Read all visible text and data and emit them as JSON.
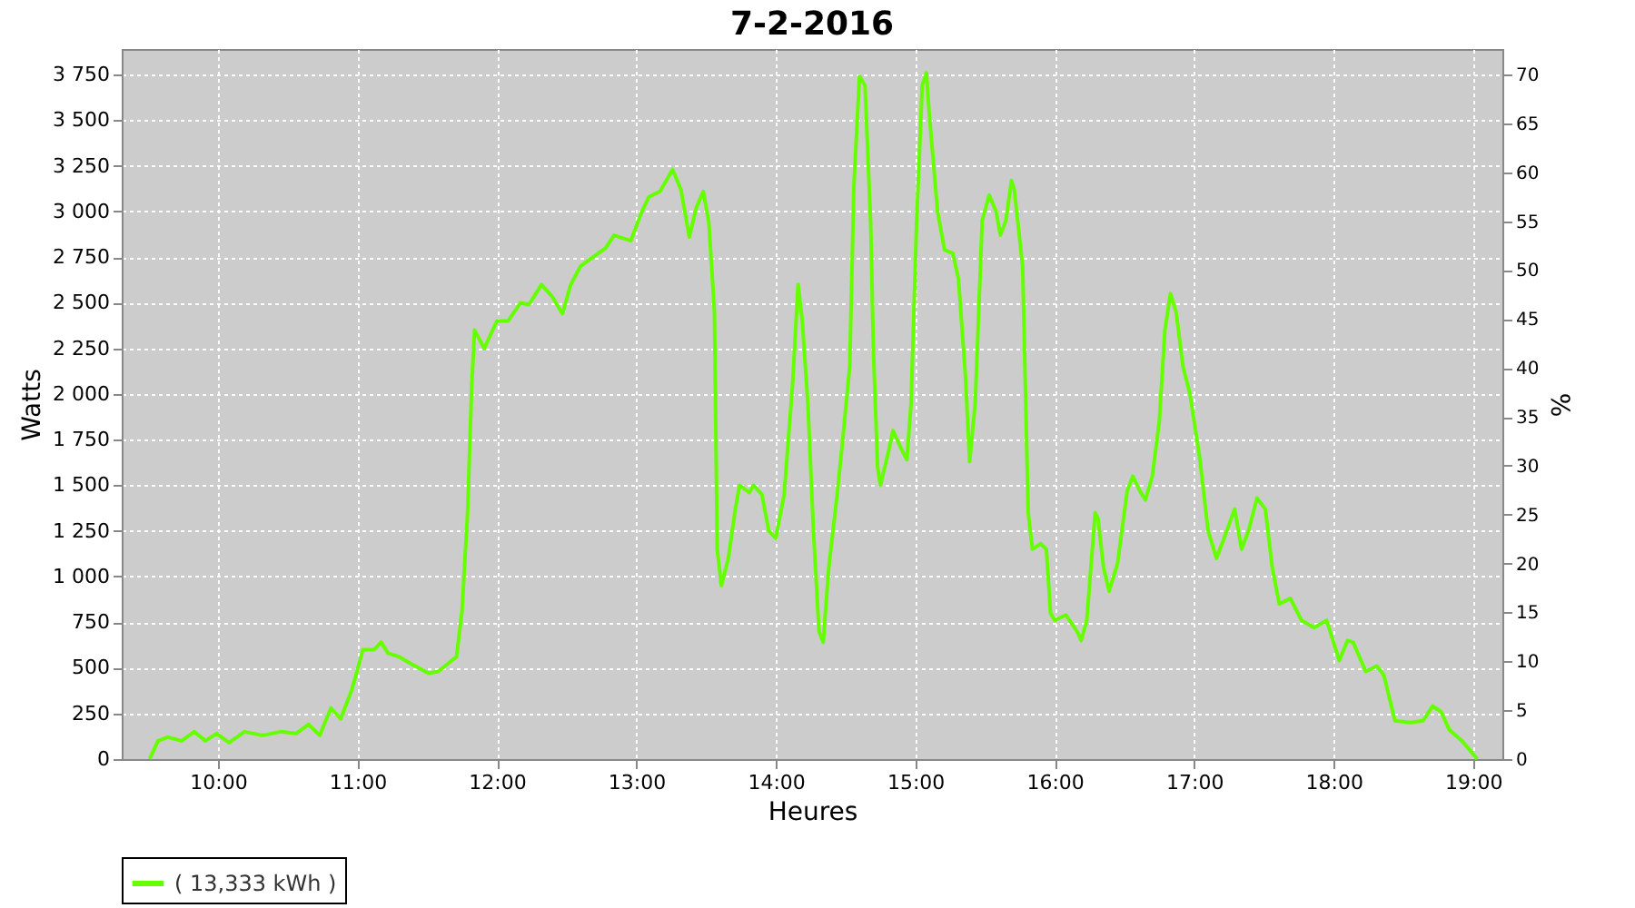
{
  "chart_data": {
    "type": "line",
    "title": "7-2-2016",
    "xlabel": "Heures",
    "ylabel": "Watts",
    "y2label": "%",
    "xlim": [
      9.31,
      19.21
    ],
    "xticks": [
      {
        "value": 10,
        "label": "10:00"
      },
      {
        "value": 11,
        "label": "11:00"
      },
      {
        "value": 12,
        "label": "12:00"
      },
      {
        "value": 13,
        "label": "13:00"
      },
      {
        "value": 14,
        "label": "14:00"
      },
      {
        "value": 15,
        "label": "15:00"
      },
      {
        "value": 16,
        "label": "16:00"
      },
      {
        "value": 17,
        "label": "17:00"
      },
      {
        "value": 18,
        "label": "18:00"
      },
      {
        "value": 19,
        "label": "19:00"
      }
    ],
    "ylim": [
      0,
      3890
    ],
    "yticks": [
      0,
      250,
      500,
      750,
      {
        "value": 1000,
        "label": "1 000"
      },
      {
        "value": 1250,
        "label": "1 250"
      },
      {
        "value": 1500,
        "label": "1 500"
      },
      {
        "value": 1750,
        "label": "1 750"
      },
      {
        "value": 2000,
        "label": "2 000"
      },
      {
        "value": 2250,
        "label": "2 250"
      },
      {
        "value": 2500,
        "label": "2 500"
      },
      {
        "value": 2750,
        "label": "2 750"
      },
      {
        "value": 3000,
        "label": "3 000"
      },
      {
        "value": 3250,
        "label": "3 250"
      },
      {
        "value": 3500,
        "label": "3 500"
      },
      {
        "value": 3750,
        "label": "3 750"
      }
    ],
    "y2lim": [
      0,
      72.6
    ],
    "y2ticks": [
      0,
      5,
      10,
      15,
      20,
      25,
      30,
      35,
      40,
      45,
      50,
      55,
      60,
      65,
      70
    ],
    "grid": true,
    "legend": "bottom",
    "marker": "none",
    "line_style": "solid",
    "series": [
      {
        "name": "( 13,333 kWh )",
        "color": "#66ff00",
        "x": [
          9.51,
          9.57,
          9.64,
          9.74,
          9.83,
          9.91,
          9.99,
          10.08,
          10.19,
          10.32,
          10.45,
          10.56,
          10.65,
          10.73,
          10.81,
          10.88,
          10.96,
          11.04,
          11.12,
          11.17,
          11.22,
          11.3,
          11.39,
          11.51,
          11.58,
          11.66,
          11.71,
          11.75,
          11.79,
          11.82,
          11.84,
          11.91,
          12.0,
          12.08,
          12.17,
          12.23,
          12.32,
          12.4,
          12.47,
          12.53,
          12.6,
          12.69,
          12.78,
          12.84,
          12.96,
          13.04,
          13.09,
          13.17,
          13.26,
          13.32,
          13.38,
          13.43,
          13.48,
          13.52,
          13.56,
          13.58,
          13.61,
          13.66,
          13.71,
          13.74,
          13.81,
          13.84,
          13.9,
          13.95,
          14.0,
          14.06,
          14.12,
          14.16,
          14.19,
          14.23,
          14.27,
          14.31,
          14.34,
          14.38,
          14.44,
          14.48,
          14.53,
          14.56,
          14.6,
          14.64,
          14.68,
          14.7,
          14.73,
          14.75,
          14.81,
          14.84,
          14.9,
          14.94,
          14.97,
          15.01,
          15.05,
          15.08,
          15.1,
          15.16,
          15.21,
          15.27,
          15.31,
          15.36,
          15.39,
          15.43,
          15.48,
          15.53,
          15.58,
          15.61,
          15.65,
          15.69,
          15.71,
          15.77,
          15.81,
          15.84,
          15.9,
          15.94,
          15.97,
          16.0,
          16.08,
          16.16,
          16.19,
          16.23,
          16.29,
          16.31,
          16.35,
          16.39,
          16.45,
          16.52,
          16.56,
          16.61,
          16.65,
          16.7,
          16.75,
          16.79,
          16.83,
          16.87,
          16.92,
          16.97,
          17.04,
          17.1,
          17.16,
          17.21,
          17.29,
          17.34,
          17.39,
          17.45,
          17.51,
          17.56,
          17.61,
          17.69,
          17.77,
          17.86,
          17.95,
          18.04,
          18.1,
          18.14,
          18.23,
          18.31,
          18.36,
          18.44,
          18.55,
          18.64,
          18.71,
          18.77,
          18.83,
          18.92,
          19.03
        ],
        "values": [
          0,
          100,
          120,
          100,
          150,
          100,
          140,
          90,
          150,
          130,
          150,
          140,
          190,
          130,
          280,
          220,
          380,
          600,
          600,
          640,
          580,
          560,
          520,
          470,
          480,
          530,
          560,
          810,
          1350,
          2050,
          2350,
          2250,
          2400,
          2400,
          2500,
          2490,
          2600,
          2530,
          2440,
          2600,
          2700,
          2750,
          2800,
          2870,
          2840,
          3000,
          3080,
          3110,
          3230,
          3120,
          2860,
          3020,
          3110,
          2940,
          2450,
          1150,
          950,
          1100,
          1370,
          1500,
          1460,
          1500,
          1450,
          1250,
          1210,
          1450,
          2050,
          2600,
          2400,
          1950,
          1250,
          700,
          640,
          1050,
          1450,
          1750,
          2150,
          3140,
          3740,
          3690,
          2940,
          2240,
          1600,
          1500,
          1690,
          1800,
          1700,
          1640,
          1950,
          2950,
          3690,
          3760,
          3540,
          3000,
          2790,
          2770,
          2630,
          2100,
          1630,
          1950,
          2950,
          3090,
          3000,
          2870,
          2950,
          3170,
          3120,
          2700,
          1350,
          1150,
          1180,
          1150,
          800,
          760,
          790,
          700,
          650,
          760,
          1350,
          1320,
          1050,
          920,
          1070,
          1470,
          1550,
          1470,
          1420,
          1550,
          1850,
          2350,
          2550,
          2450,
          2150,
          2000,
          1650,
          1250,
          1100,
          1200,
          1370,
          1150,
          1250,
          1430,
          1370,
          1050,
          850,
          880,
          760,
          720,
          760,
          540,
          650,
          640,
          480,
          510,
          460,
          210,
          200,
          210,
          290,
          260,
          160,
          100,
          0
        ]
      }
    ]
  }
}
